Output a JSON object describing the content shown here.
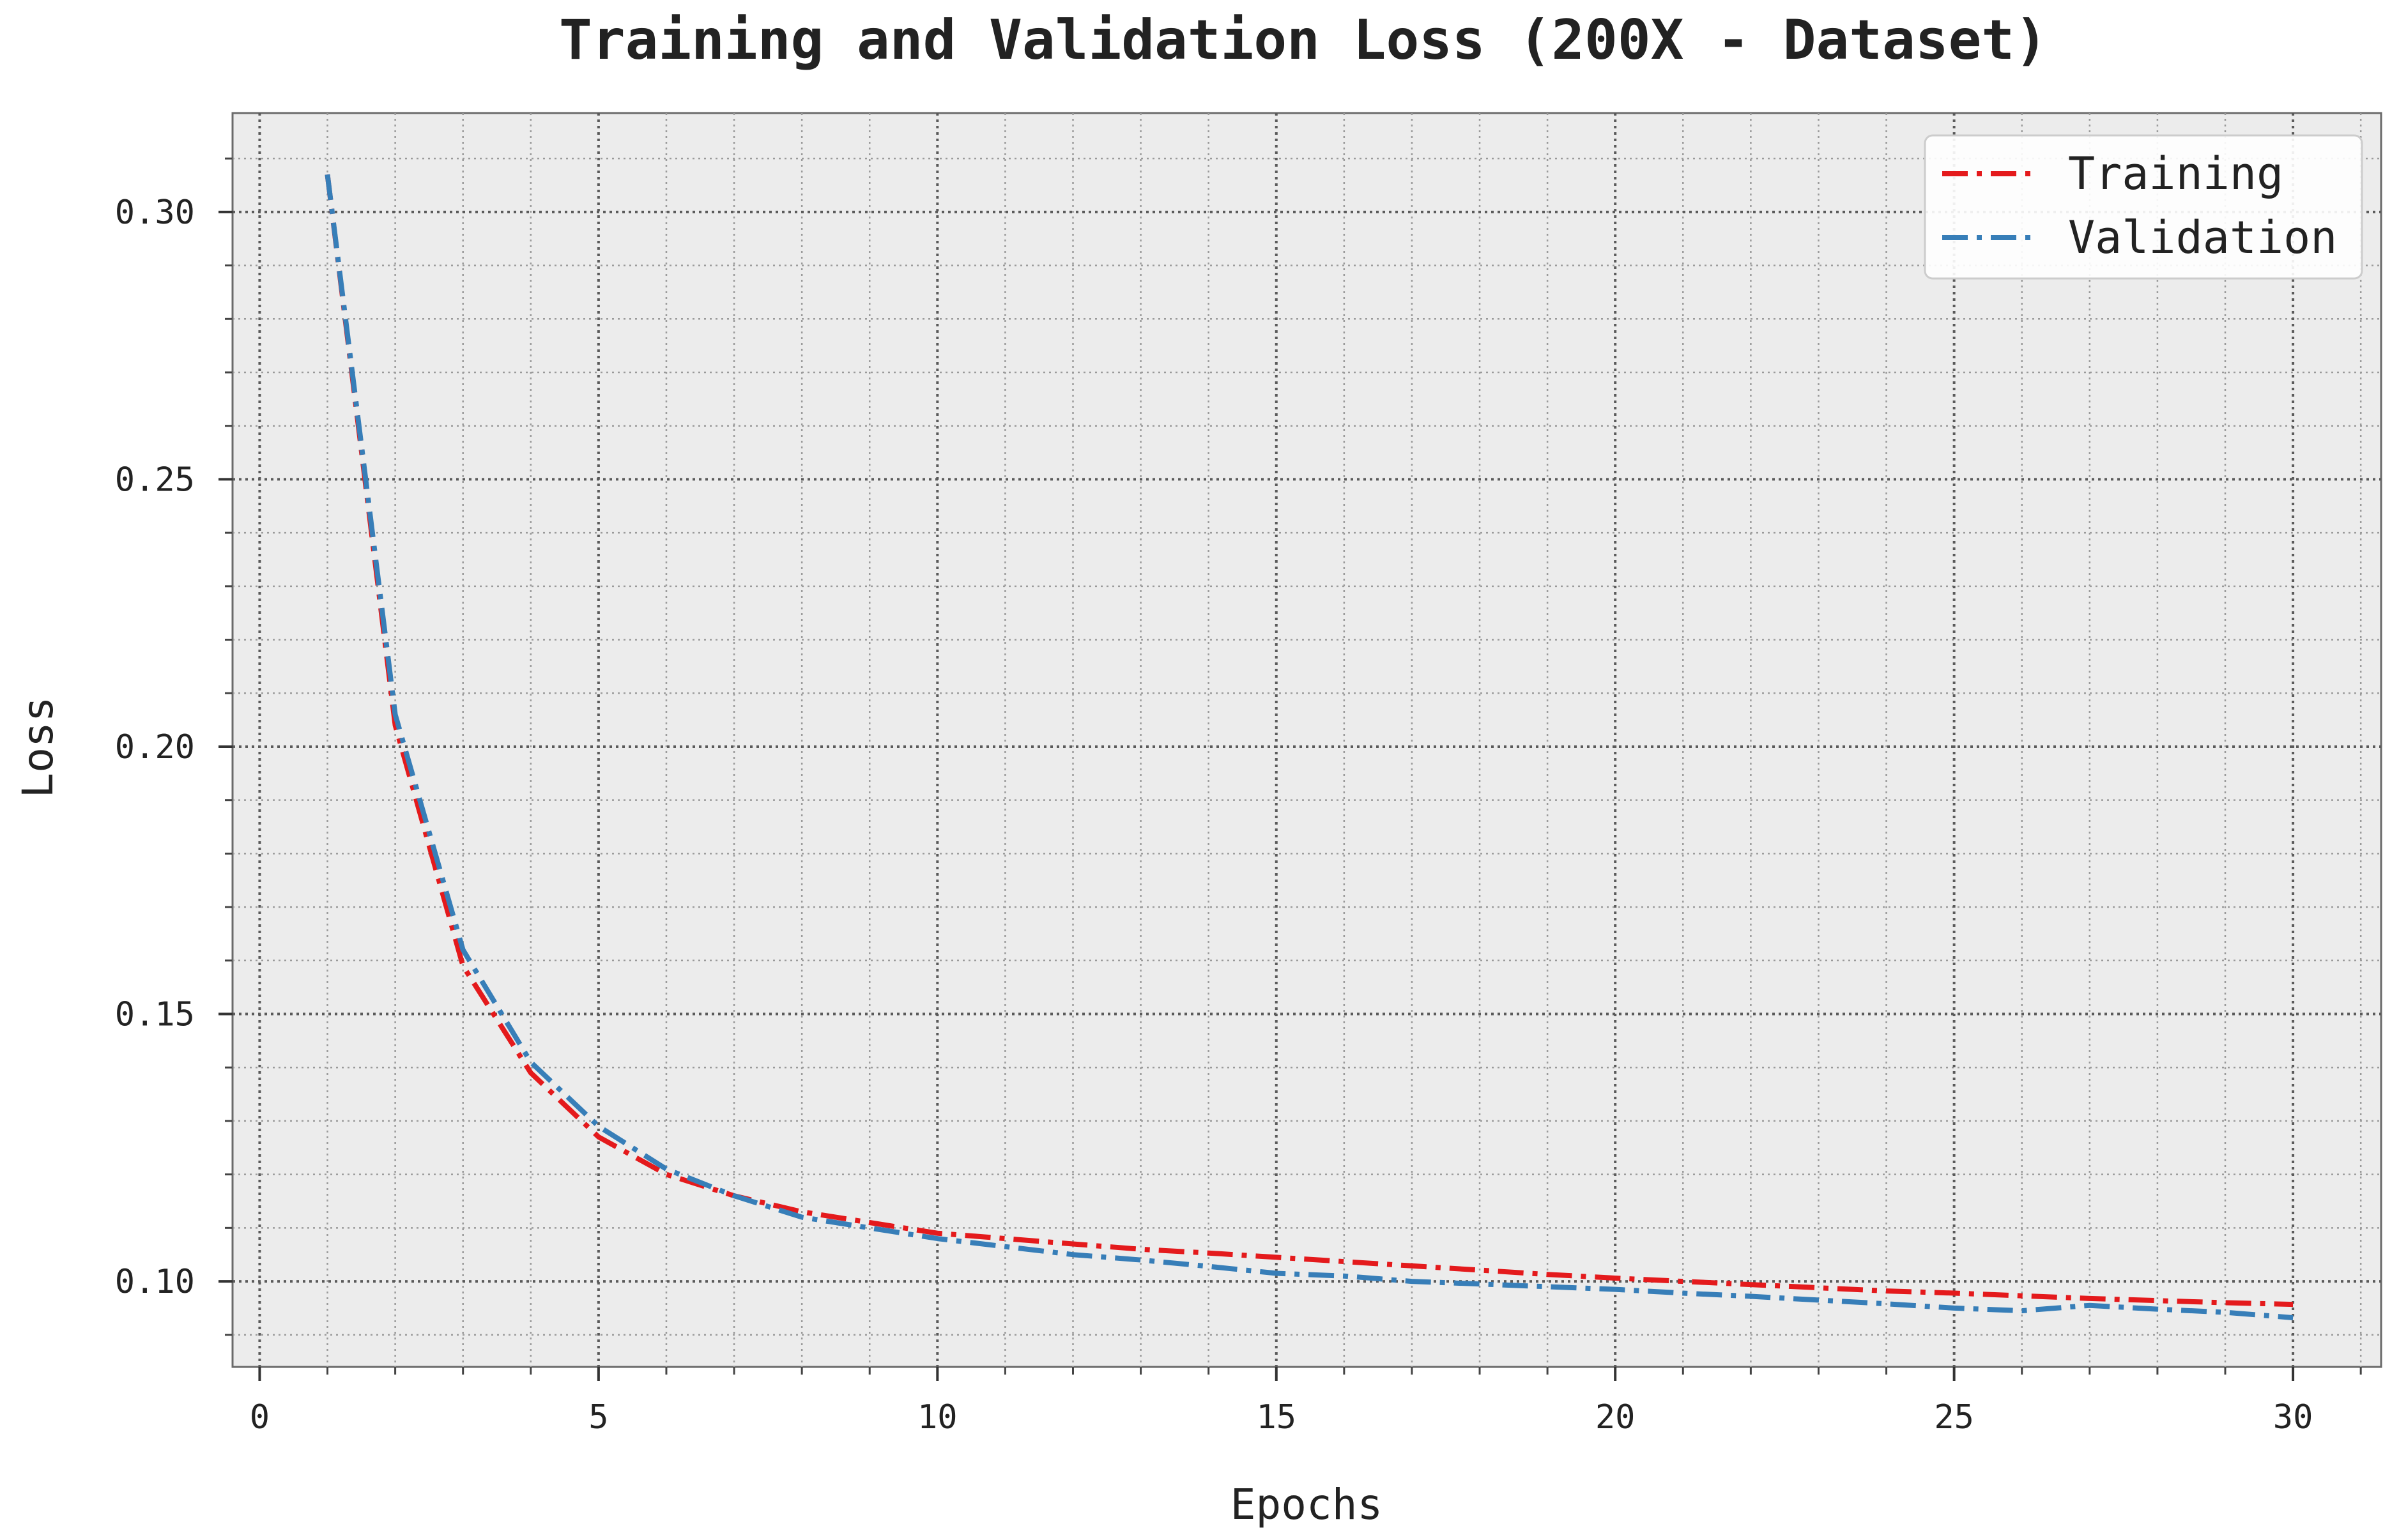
{
  "chart_data": {
    "type": "line",
    "title": "Training and Validation Loss (200X - Dataset)",
    "xlabel": "Epochs",
    "ylabel": "Loss",
    "xlim": [
      -0.4,
      31.3
    ],
    "ylim": [
      0.084,
      0.3185
    ],
    "xticks": [
      0,
      5,
      10,
      15,
      20,
      25,
      30
    ],
    "yticks": [
      0.1,
      0.15,
      0.2,
      0.25,
      0.3
    ],
    "ytick_labels": [
      "0.10",
      "0.15",
      "0.20",
      "0.25",
      "0.30"
    ],
    "grid": true,
    "minor_grid": true,
    "legend_position": "top-right",
    "x": [
      1,
      2,
      3,
      4,
      5,
      6,
      7,
      8,
      9,
      10,
      11,
      12,
      13,
      14,
      15,
      16,
      17,
      18,
      19,
      20,
      21,
      22,
      23,
      24,
      25,
      26,
      27,
      28,
      29,
      30
    ],
    "series": [
      {
        "name": "Training",
        "color": "#e41a1c",
        "values": [
          0.307,
          0.204,
          0.159,
          0.139,
          0.127,
          0.12,
          0.116,
          0.113,
          0.111,
          0.109,
          0.108,
          0.107,
          0.106,
          0.1053,
          0.1045,
          0.1037,
          0.1029,
          0.1021,
          0.1013,
          0.1006,
          0.1,
          0.0994,
          0.0988,
          0.0982,
          0.0978,
          0.0973,
          0.0968,
          0.0964,
          0.096,
          0.0957
        ]
      },
      {
        "name": "Validation",
        "color": "#377eb8",
        "values": [
          0.307,
          0.206,
          0.162,
          0.141,
          0.129,
          0.121,
          0.116,
          0.112,
          0.11,
          0.108,
          0.1065,
          0.105,
          0.104,
          0.1028,
          0.1015,
          0.101,
          0.1,
          0.0995,
          0.099,
          0.0985,
          0.0978,
          0.0972,
          0.0965,
          0.0958,
          0.095,
          0.0945,
          0.0955,
          0.0948,
          0.0942,
          0.0932
        ]
      }
    ]
  }
}
